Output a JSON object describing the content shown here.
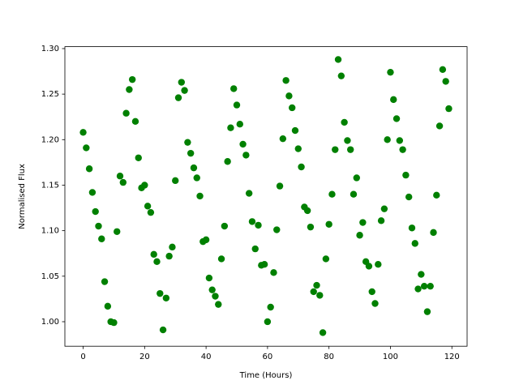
{
  "chart_data": {
    "type": "scatter",
    "x_label": "Time (Hours)",
    "y_label": "Normalised Flux",
    "color": "#008000",
    "x": [
      0,
      1,
      2,
      3,
      4,
      5,
      6,
      7,
      8,
      9,
      10,
      11,
      12,
      13,
      14,
      15,
      16,
      17,
      18,
      19,
      20,
      21,
      22,
      23,
      24,
      25,
      26,
      27,
      28,
      29,
      30,
      31,
      32,
      33,
      34,
      35,
      36,
      37,
      38,
      39,
      40,
      41,
      42,
      43,
      44,
      45,
      46,
      47,
      48,
      49,
      50,
      51,
      52,
      53,
      54,
      55,
      56,
      57,
      58,
      59,
      60,
      61,
      62,
      63,
      64,
      65,
      66,
      67,
      68,
      69,
      70,
      71,
      72,
      73,
      74,
      75,
      76,
      77,
      78,
      79,
      80,
      81,
      82,
      83,
      84,
      85,
      86,
      87,
      88,
      89,
      90,
      91,
      92,
      93,
      94,
      95,
      96,
      97,
      98,
      99,
      100,
      101,
      102,
      103,
      104,
      105,
      106,
      107,
      108,
      109,
      110,
      111,
      112,
      113,
      114,
      115,
      116,
      117,
      118,
      119
    ],
    "values": [
      1.208,
      1.191,
      1.168,
      1.142,
      1.121,
      1.105,
      1.091,
      1.044,
      1.017,
      1.0,
      0.999,
      1.099,
      1.16,
      1.153,
      1.229,
      1.255,
      1.266,
      1.22,
      1.18,
      1.147,
      1.15,
      1.127,
      1.12,
      1.074,
      1.066,
      1.031,
      0.991,
      1.026,
      1.072,
      1.082,
      1.155,
      1.246,
      1.263,
      1.254,
      1.197,
      1.185,
      1.169,
      1.158,
      1.138,
      1.088,
      1.09,
      1.048,
      1.035,
      1.028,
      1.019,
      1.069,
      1.105,
      1.176,
      1.213,
      1.256,
      1.238,
      1.217,
      1.195,
      1.183,
      1.141,
      1.11,
      1.08,
      1.106,
      1.062,
      1.063,
      1.0,
      1.016,
      1.054,
      1.101,
      1.149,
      1.201,
      1.265,
      1.248,
      1.235,
      1.21,
      1.19,
      1.17,
      1.126,
      1.122,
      1.104,
      1.033,
      1.04,
      1.029,
      0.988,
      1.069,
      1.107,
      1.14,
      1.189,
      1.288,
      1.27,
      1.219,
      1.199,
      1.189,
      1.14,
      1.158,
      1.095,
      1.109,
      1.066,
      1.061,
      1.033,
      1.02,
      1.063,
      1.111,
      1.124,
      1.2,
      1.274,
      1.244,
      1.223,
      1.199,
      1.189,
      1.161,
      1.137,
      1.103,
      1.086,
      1.036,
      1.052,
      1.039,
      1.011,
      1.039,
      1.098,
      1.139,
      1.215,
      1.277,
      1.264,
      1.234
    ],
    "xlim": [
      -5.95,
      124.95
    ],
    "ylim": [
      0.9731,
      1.3021
    ],
    "xticks": [
      0,
      20,
      40,
      60,
      80,
      100,
      120
    ],
    "yticks": [
      {
        "value": 1.0,
        "label": "1.00"
      },
      {
        "value": 1.05,
        "label": "1.05"
      },
      {
        "value": 1.1,
        "label": "1.10"
      },
      {
        "value": 1.15,
        "label": "1.15"
      },
      {
        "value": 1.2,
        "label": "1.20"
      },
      {
        "value": 1.25,
        "label": "1.25"
      },
      {
        "value": 1.3,
        "label": "1.30"
      }
    ]
  }
}
